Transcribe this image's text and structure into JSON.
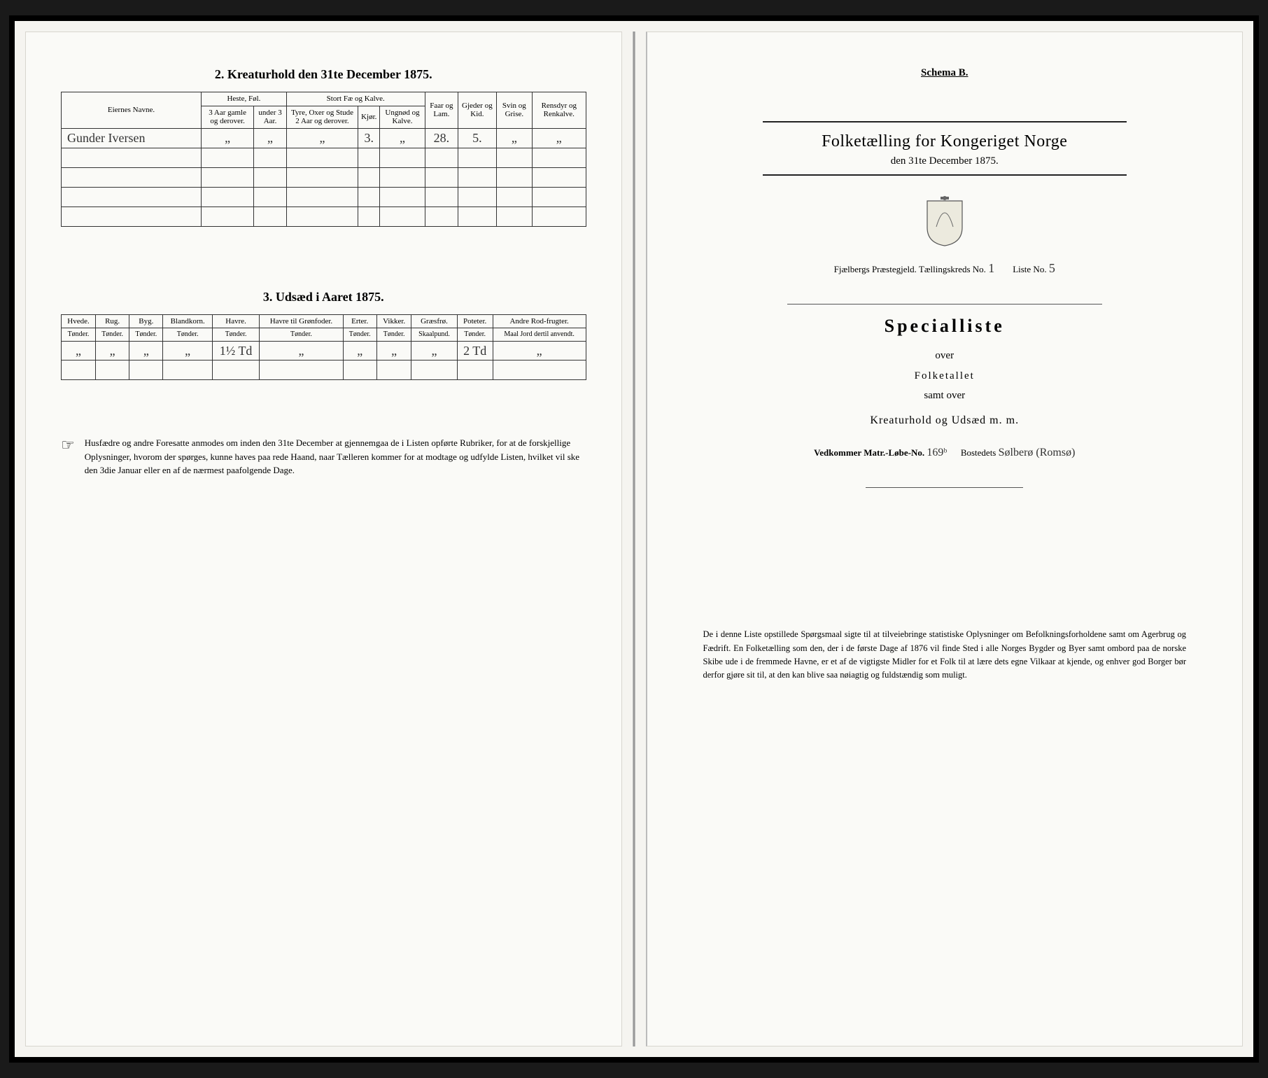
{
  "left": {
    "section2_title": "2.  Kreaturhold den 31te December 1875.",
    "table2": {
      "owner_header": "Eiernes Navne.",
      "group_heste": "Heste, Føl.",
      "group_storfae": "Stort Fæ og Kalve.",
      "col_heste_a": "3 Aar gamle og derover.",
      "col_heste_b": "under 3 Aar.",
      "col_stor_a": "Tyre, Oxer og Stude 2 Aar og derover.",
      "col_stor_b": "Kjør.",
      "col_stor_c": "Ungnød og Kalve.",
      "col_faar": "Faar og Lam.",
      "col_gjeder": "Gjeder og Kid.",
      "col_svin": "Svin og Grise.",
      "col_rens": "Rensdyr og Renkalve.",
      "row1": {
        "owner": "Gunder Iversen",
        "heste_a": "„",
        "heste_b": "„",
        "stor_a": "„",
        "stor_b": "3.",
        "stor_c": "„",
        "faar": "28.",
        "gjeder": "5.",
        "svin": "„",
        "rens": "„"
      }
    },
    "section3_title": "3.  Udsæd i Aaret 1875.",
    "table3": {
      "cols": [
        {
          "h": "Hvede.",
          "s": "Tønder."
        },
        {
          "h": "Rug.",
          "s": "Tønder."
        },
        {
          "h": "Byg.",
          "s": "Tønder."
        },
        {
          "h": "Blandkorn.",
          "s": "Tønder."
        },
        {
          "h": "Havre.",
          "s": "Tønder."
        },
        {
          "h": "Havre til Grønfoder.",
          "s": "Tønder."
        },
        {
          "h": "Erter.",
          "s": "Tønder."
        },
        {
          "h": "Vikker.",
          "s": "Tønder."
        },
        {
          "h": "Græsfrø.",
          "s": "Skaalpund."
        },
        {
          "h": "Poteter.",
          "s": "Tønder."
        },
        {
          "h": "Andre Rod-frugter.",
          "s": "Maal Jord dertil anvendt."
        }
      ],
      "row": [
        "„",
        "„",
        "„",
        "„",
        "1½ Td",
        "„",
        "„",
        "„",
        "„",
        "2 Td",
        "„"
      ]
    },
    "note": "Husfædre og andre Foresatte anmodes om inden den 31te December at gjennemgaa de i Listen opførte Rubriker, for at de forskjellige Oplysninger, hvorom der spørges, kunne haves paa rede Haand, naar Tælleren kommer for at modtage og udfylde Listen, hvilket vil ske den 3die Januar eller en af de nærmest paafolgende Dage."
  },
  "right": {
    "schema": "Schema B.",
    "title1": "Folketælling for Kongeriget Norge",
    "title2": "den 31te December 1875.",
    "parish_prefix": "Fjælbergs Præstegjeld.  Tællingskreds No.",
    "parish_kreds": "1",
    "liste_label": "Liste No.",
    "liste_no": "5",
    "special_big": "Specialliste",
    "special_over": "over",
    "special_folk": "Folketallet",
    "special_samt": "samt over",
    "special_kreat": "Kreaturhold og Udsæd m. m.",
    "vedk_label": "Vedkommer Matr.-Løbe-No.",
    "vedk_no": "169ᵇ",
    "bosted_label": "Bostedets",
    "bosted_val": "Sølberø (Romsø)",
    "bottom_note": "De i denne Liste opstillede Spørgsmaal sigte til at tilveiebringe statistiske Oplysninger om Befolkningsforholdene samt om Agerbrug og Fædrift.  En Folketælling som den, der i de første Dage af 1876 vil finde Sted i alle Norges Bygder og Byer samt ombord paa de norske Skibe ude i de fremmede Havne, er et af de vigtigste Midler for et Folk til at lære dets egne Vilkaar at kjende, og enhver god Borger bør derfor gjøre sit til, at den kan blive saa nøiagtig og fuldstændig som muligt."
  }
}
